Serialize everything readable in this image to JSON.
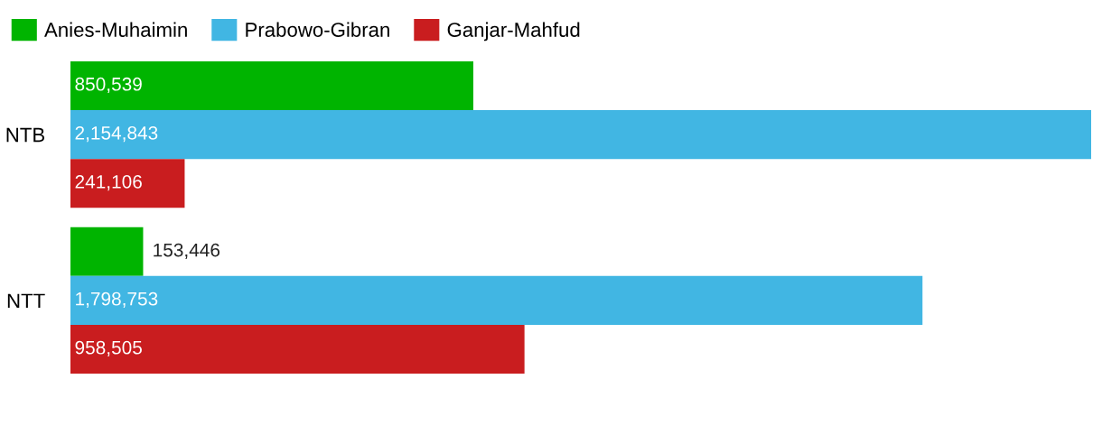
{
  "chart_data": {
    "type": "bar",
    "orientation": "horizontal",
    "categories": [
      "NTB",
      "NTT"
    ],
    "series": [
      {
        "name": "Anies-Muhaimin",
        "color": "#00b400",
        "values": [
          850539,
          153446
        ],
        "value_labels": [
          "850,539",
          "153,446"
        ]
      },
      {
        "name": "Prabowo-Gibran",
        "color": "#41b6e3",
        "values": [
          2154843,
          1798753
        ],
        "value_labels": [
          "2,154,843",
          "1,798,753"
        ]
      },
      {
        "name": "Ganjar-Mahfud",
        "color": "#c91d1f",
        "values": [
          241106,
          958505
        ],
        "value_labels": [
          "241,106",
          "958,505"
        ]
      }
    ],
    "legend": "top left",
    "tick_labels": "y",
    "grid": false
  }
}
